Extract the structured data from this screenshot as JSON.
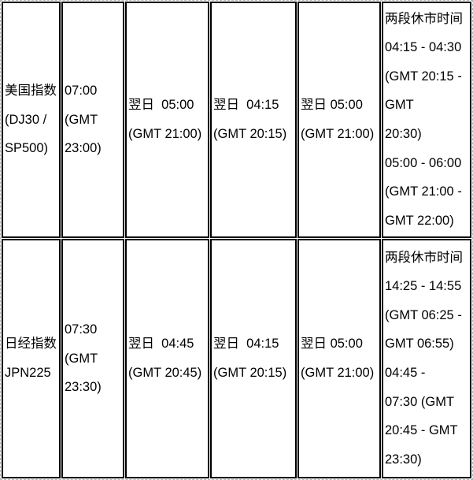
{
  "colors": {
    "text": "#000000",
    "cell_border": "#000000",
    "outer_dashed_border": "#b3b3b3",
    "background": "#ffffff"
  },
  "table": {
    "rows": [
      {
        "instrument": "美国指数\n(DJ30 /\nSP500)",
        "open_time": "07:00\n(GMT\n23:00)",
        "close_time_1": "翌日  05:00\n(GMT 21:00)",
        "close_time_2": "翌日  04:15\n(GMT 20:15)",
        "close_time_3": "翌日 05:00\n(GMT 21:00)",
        "break_times": "两段休市时间\n04:15 - 04:30\n(GMT 20:15 -\nGMT\n20:30)\n05:00 - 06:00\n(GMT 21:00 -\nGMT 22:00)"
      },
      {
        "instrument": "日经指数\nJPN225",
        "open_time": "07:30\n(GMT\n23:30)",
        "close_time_1": "翌日  04:45\n(GMT 20:45)",
        "close_time_2": "翌日  04:15\n(GMT 20:15)",
        "close_time_3": "翌日 05:00\n(GMT 21:00)",
        "break_times": "两段休市时间\n14:25 - 14:55\n(GMT 06:25 -\nGMT 06:55)\n04:45 -\n07:30 (GMT\n20:45 - GMT\n23:30)"
      }
    ]
  }
}
